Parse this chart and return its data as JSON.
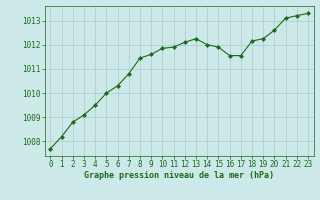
{
  "x": [
    0,
    1,
    2,
    3,
    4,
    5,
    6,
    7,
    8,
    9,
    10,
    11,
    12,
    13,
    14,
    15,
    16,
    17,
    18,
    19,
    20,
    21,
    22,
    23
  ],
  "y": [
    1007.7,
    1008.2,
    1008.8,
    1009.1,
    1009.5,
    1010.0,
    1010.3,
    1010.8,
    1011.45,
    1011.6,
    1011.85,
    1011.9,
    1012.1,
    1012.25,
    1012.0,
    1011.9,
    1011.55,
    1011.55,
    1012.15,
    1012.25,
    1012.6,
    1013.1,
    1013.2,
    1013.3
  ],
  "line_color": "#1a6b1a",
  "marker": "D",
  "marker_size": 2.0,
  "bg_color": "#cce8e8",
  "grid_color": "#aacccc",
  "xlabel": "Graphe pression niveau de la mer (hPa)",
  "xlabel_color": "#1a6b1a",
  "tick_color": "#1a6b1a",
  "spine_color": "#1a6b1a",
  "ylim": [
    1007.4,
    1013.6
  ],
  "yticks": [
    1008,
    1009,
    1010,
    1011,
    1012,
    1013
  ],
  "xlim": [
    -0.5,
    23.5
  ],
  "xticks": [
    0,
    1,
    2,
    3,
    4,
    5,
    6,
    7,
    8,
    9,
    10,
    11,
    12,
    13,
    14,
    15,
    16,
    17,
    18,
    19,
    20,
    21,
    22,
    23
  ],
  "tick_fontsize": 5.5,
  "xlabel_fontsize": 6.0
}
